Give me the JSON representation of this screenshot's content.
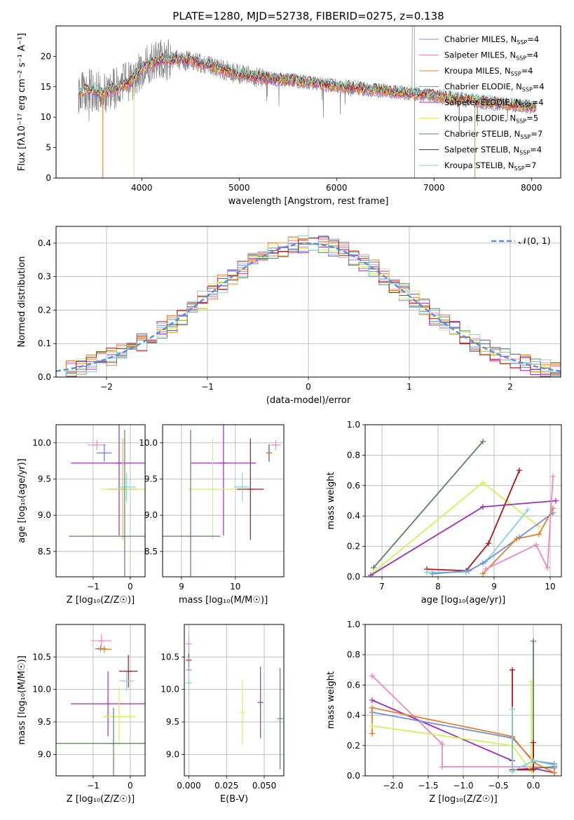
{
  "figure": {
    "title": "PLATE=1280, MJD=52738, FIBERID=0275, z=0.138"
  },
  "models": [
    {
      "name": "Chabrier MILES",
      "nssp": "4",
      "color": "#6f8fdb"
    },
    {
      "name": "Salpeter MILES",
      "nssp": "4",
      "color": "#e78ac3"
    },
    {
      "name": "Kroupa MILES",
      "nssp": "4",
      "color": "#e77d2e"
    },
    {
      "name": "Chabrier ELODIE",
      "nssp": "4",
      "color": "#e77d2e"
    },
    {
      "name": "Salpeter ELODIE",
      "nssp": "4",
      "color": "#9b30b8"
    },
    {
      "name": "Kroupa ELODIE",
      "nssp": "5",
      "color": "#d4f05a"
    },
    {
      "name": "Chabrier STELIB",
      "nssp": "7",
      "color": "#5a8060"
    },
    {
      "name": "Salpeter STELIB",
      "nssp": "4",
      "color": "#aa1515"
    },
    {
      "name": "Kroupa STELIB",
      "nssp": "7",
      "color": "#86d1d6"
    }
  ],
  "chart_data": [
    {
      "id": "spectrum",
      "type": "line",
      "xlabel": "wavelength [Angstrom, rest frame]",
      "ylabel": "Flux [fλ10⁻¹⁷ erg cm⁻² s⁻¹ A⁻¹]",
      "xlim": [
        3120,
        8300
      ],
      "ylim": [
        0,
        25
      ],
      "xticks": [
        4000,
        5000,
        6000,
        7000,
        8000
      ],
      "yticks": [
        0,
        5,
        10,
        15,
        20
      ],
      "grid": false,
      "legend": "top-right",
      "data_color": "#808080",
      "continuum": {
        "x": [
          3350,
          3450,
          3600,
          3750,
          3900,
          4000,
          4200,
          4500,
          4800,
          5000,
          5300,
          5600,
          5900,
          6200,
          6500,
          6800,
          7100,
          7400,
          7800,
          8000
        ],
        "y": [
          14.0,
          14.5,
          14.0,
          14.8,
          16.0,
          18.0,
          19.5,
          19.3,
          18.0,
          17.0,
          16.3,
          16.0,
          15.3,
          14.8,
          14.3,
          13.8,
          13.3,
          12.7,
          12.0,
          11.7
        ]
      },
      "notes": [
        "data spectrum in grey",
        "model fits overplotted"
      ]
    },
    {
      "id": "residuals",
      "type": "line",
      "xlabel": "(data-model)/error",
      "ylabel": "Normed distribution",
      "xlim": [
        -2.5,
        2.5
      ],
      "ylim": [
        0,
        0.45
      ],
      "xticks": [
        -2,
        -1,
        0,
        1,
        2
      ],
      "yticks": [
        0.0,
        0.1,
        0.2,
        0.3,
        0.4
      ],
      "grid": true,
      "legend": "top-right",
      "legend_label": "𝒩(0, 1)",
      "gaussian": {
        "mu": 0,
        "sigma": 1
      }
    },
    {
      "id": "age-vs-Z",
      "type": "scatter",
      "xlabel": "Z [log₁₀(Z/Z☉)]",
      "ylabel": "age  [log₁₀(age/yr)]",
      "xlim": [
        -2.0,
        0.4
      ],
      "ylim": [
        8.15,
        10.25
      ],
      "xticks": [
        -1,
        0
      ],
      "yticks": [
        8.5,
        9.0,
        9.5,
        10.0
      ],
      "grid": true,
      "points": [
        {
          "model": 1,
          "x": -0.9,
          "xerr": 0.25,
          "y": 9.97,
          "yerr": 0.07
        },
        {
          "model": 2,
          "x": -0.7,
          "xerr": 0.2,
          "y": 9.86,
          "yerr": 0.12
        },
        {
          "model": 0,
          "x": -0.7,
          "xerr": 0.2,
          "y": 9.86,
          "yerr": 0.12
        },
        {
          "model": 4,
          "x": -0.3,
          "xerr": 1.3,
          "y": 9.72,
          "yerr": 1.0
        },
        {
          "model": 7,
          "x": -0.2,
          "xerr": 0.4,
          "y": 9.36,
          "yerr": 0.7
        },
        {
          "model": 8,
          "x": -0.1,
          "xerr": 0.25,
          "y": 9.39,
          "yerr": 0.2
        },
        {
          "model": 5,
          "x": -0.2,
          "xerr": 0.6,
          "y": 9.36,
          "yerr": 0.7
        },
        {
          "model": 6,
          "x": -0.15,
          "xerr": 1.5,
          "y": 8.71,
          "yerr": 1.47
        }
      ]
    },
    {
      "id": "age-vs-mass",
      "type": "scatter",
      "xlabel": "mass [log₁₀(M/M☉)]",
      "ylabel": "",
      "xlim": [
        8.65,
        10.9
      ],
      "ylim": [
        8.15,
        10.25
      ],
      "xticks": [
        9,
        10
      ],
      "yticks": [
        8.5,
        9.0,
        9.5,
        10.0
      ],
      "grid": true,
      "points": [
        {
          "model": 1,
          "x": 10.75,
          "xerr": 0.1,
          "y": 9.97,
          "yerr": 0.07
        },
        {
          "model": 0,
          "x": 10.63,
          "xerr": 0.05,
          "y": 9.86,
          "yerr": 0.12
        },
        {
          "model": 2,
          "x": 10.62,
          "xerr": 0.05,
          "y": 9.86,
          "yerr": 0.12
        },
        {
          "model": 4,
          "x": 9.78,
          "xerr": 0.6,
          "y": 9.72,
          "yerr": 1.0
        },
        {
          "model": 7,
          "x": 10.28,
          "xerr": 0.25,
          "y": 9.36,
          "yerr": 0.7
        },
        {
          "model": 8,
          "x": 10.13,
          "xerr": 0.15,
          "y": 9.39,
          "yerr": 0.2
        },
        {
          "model": 5,
          "x": 9.58,
          "xerr": 0.45,
          "y": 9.36,
          "yerr": 0.7
        },
        {
          "model": 6,
          "x": 9.17,
          "xerr": 0.55,
          "y": 8.71,
          "yerr": 1.47
        }
      ]
    },
    {
      "id": "weight-vs-age",
      "type": "line",
      "xlabel": "age  [log₁₀(age/yr)]",
      "ylabel": "mass weight",
      "xlim": [
        6.7,
        10.2
      ],
      "ylim": [
        0,
        1.0
      ],
      "xticks": [
        7,
        8,
        9,
        10
      ],
      "yticks": [
        0.0,
        0.2,
        0.4,
        0.6,
        0.8,
        1.0
      ],
      "grid": true,
      "series": [
        {
          "model": 6,
          "x": [
            6.85,
            8.8
          ],
          "y": [
            0.06,
            0.89
          ]
        },
        {
          "model": 5,
          "x": [
            6.85,
            8.8,
            9.8
          ],
          "y": [
            0.03,
            0.62,
            0.33
          ]
        },
        {
          "model": 4,
          "x": [
            6.8,
            8.8,
            10.1
          ],
          "y": [
            0.01,
            0.46,
            0.5
          ]
        },
        {
          "model": 7,
          "x": [
            7.8,
            8.5,
            8.9,
            9.45
          ],
          "y": [
            0.05,
            0.04,
            0.22,
            0.7
          ]
        },
        {
          "model": 8,
          "x": [
            7.8,
            8.5,
            8.85,
            9.6
          ],
          "y": [
            0.03,
            0.03,
            0.1,
            0.44
          ]
        },
        {
          "model": 0,
          "x": [
            7.9,
            8.55,
            8.8,
            9.45,
            10.05
          ],
          "y": [
            0.02,
            0.04,
            0.09,
            0.26,
            0.42
          ]
        },
        {
          "model": 2,
          "x": [
            8.8,
            9.4,
            9.8,
            10.05
          ],
          "y": [
            0.02,
            0.25,
            0.28,
            0.45
          ]
        },
        {
          "model": 1,
          "x": [
            8.85,
            9.75,
            9.95,
            10.05
          ],
          "y": [
            0.05,
            0.21,
            0.06,
            0.66
          ]
        }
      ]
    },
    {
      "id": "mass-vs-Z",
      "type": "scatter",
      "xlabel": "Z [log₁₀(Z/Z☉)]",
      "ylabel": "mass [log₁₀(M/M☉)]",
      "xlim": [
        -2.0,
        0.4
      ],
      "ylim": [
        8.67,
        11.0
      ],
      "xticks": [
        -1,
        0
      ],
      "yticks": [
        9.0,
        9.5,
        10.0,
        10.5
      ],
      "grid": true,
      "points": [
        {
          "model": 1,
          "x": -0.78,
          "xerr": 0.28,
          "y": 10.75,
          "yerr": 0.1
        },
        {
          "model": 0,
          "x": -0.8,
          "xerr": 0.15,
          "y": 10.63,
          "yerr": 0.05
        },
        {
          "model": 2,
          "x": -0.7,
          "xerr": 0.2,
          "y": 10.62,
          "yerr": 0.05
        },
        {
          "model": 7,
          "x": -0.05,
          "xerr": 0.25,
          "y": 10.28,
          "yerr": 0.25
        },
        {
          "model": 8,
          "x": -0.1,
          "xerr": 0.2,
          "y": 10.13,
          "yerr": 0.15
        },
        {
          "model": 4,
          "x": -0.6,
          "xerr": 1.0,
          "y": 9.78,
          "yerr": 0.5
        },
        {
          "model": 5,
          "x": -0.3,
          "xerr": 0.45,
          "y": 9.58,
          "yerr": 0.45
        },
        {
          "model": 6,
          "x": -0.45,
          "xerr": 1.6,
          "y": 9.17,
          "yerr": 0.55
        }
      ]
    },
    {
      "id": "mass-vs-EBV",
      "type": "scatter",
      "xlabel": "E(B-V)",
      "ylabel": "",
      "xlim": [
        -0.003,
        0.063
      ],
      "ylim": [
        8.67,
        11.0
      ],
      "xticks": [
        0.0,
        0.025,
        0.05
      ],
      "xticklabels": [
        "0.000",
        "0.025",
        "0.050"
      ],
      "yticks": [
        9.0,
        9.5,
        10.0,
        10.5
      ],
      "grid": true,
      "points": [
        {
          "model": 1,
          "x": 0.0,
          "xerr": 0,
          "y": 10.7,
          "yerr": 0.15
        },
        {
          "model": 7,
          "x": 0.0,
          "xerr": 0,
          "y": 10.45,
          "yerr": 0.1
        },
        {
          "model": 0,
          "x": 0.0,
          "xerr": 0,
          "y": 10.3,
          "yerr": 0.2
        },
        {
          "model": 8,
          "x": 0.0,
          "xerr": 0,
          "y": 10.1,
          "yerr": 0.2
        },
        {
          "model": 5,
          "x": 0.0355,
          "xerr": 0,
          "y": 9.65,
          "yerr": 0.5
        },
        {
          "model": 4,
          "x": 0.0475,
          "xerr": 0,
          "y": 9.8,
          "yerr": 0.55
        },
        {
          "model": 6,
          "x": 0.0605,
          "xerr": 0,
          "y": 9.55,
          "yerr": 0.78
        }
      ]
    },
    {
      "id": "weight-vs-Z",
      "type": "line",
      "xlabel": "Z [log₁₀(Z/Z☉)]",
      "ylabel": "mass weight",
      "xlim": [
        -2.4,
        0.4
      ],
      "ylim": [
        0,
        1.0
      ],
      "xticks": [
        -2.0,
        -1.5,
        -1.0,
        -0.5,
        0.0
      ],
      "xticklabels": [
        "−2.0",
        "−1.5",
        "−1.0",
        "−0.5",
        "0.0"
      ],
      "yticks": [
        0.0,
        0.2,
        0.4,
        0.6,
        0.8,
        1.0
      ],
      "grid": true,
      "series": [
        {
          "model": 1,
          "x": [
            -2.3,
            -1.3,
            -1.3,
            0.0,
            0.3
          ],
          "y": [
            0.66,
            0.21,
            0.06,
            0.06,
            0.05
          ]
        },
        {
          "model": 4,
          "x": [
            -2.3,
            -0.3,
            -0.3,
            0.0,
            0.3
          ],
          "y": [
            0.5,
            0.1,
            0.04,
            0.05,
            0.02
          ]
        },
        {
          "model": 0,
          "x": [
            -2.3,
            -0.3,
            0.0,
            0.3
          ],
          "y": [
            0.42,
            0.25,
            0.1,
            0.08
          ]
        },
        {
          "model": 2,
          "x": [
            -2.3,
            -2.3,
            -0.3,
            0.0,
            0.3
          ],
          "y": [
            0.28,
            0.45,
            0.26,
            0.09,
            0.02
          ]
        },
        {
          "model": 5,
          "x": [
            -2.3,
            -0.3,
            -0.03,
            -0.03
          ],
          "y": [
            0.33,
            0.2,
            0.03,
            0.62
          ]
        },
        {
          "model": 6,
          "x": [
            0.0,
            0.0,
            0.3
          ],
          "y": [
            0.89,
            0.05,
            0.06
          ]
        },
        {
          "model": 7,
          "x": [
            -0.3,
            -0.3,
            0.0,
            0.0
          ],
          "y": [
            0.7,
            0.04,
            0.04,
            0.22
          ]
        },
        {
          "model": 8,
          "x": [
            -0.3,
            -0.3,
            0.0,
            0.3
          ],
          "y": [
            0.44,
            0.03,
            0.1,
            0.07
          ]
        }
      ]
    }
  ]
}
